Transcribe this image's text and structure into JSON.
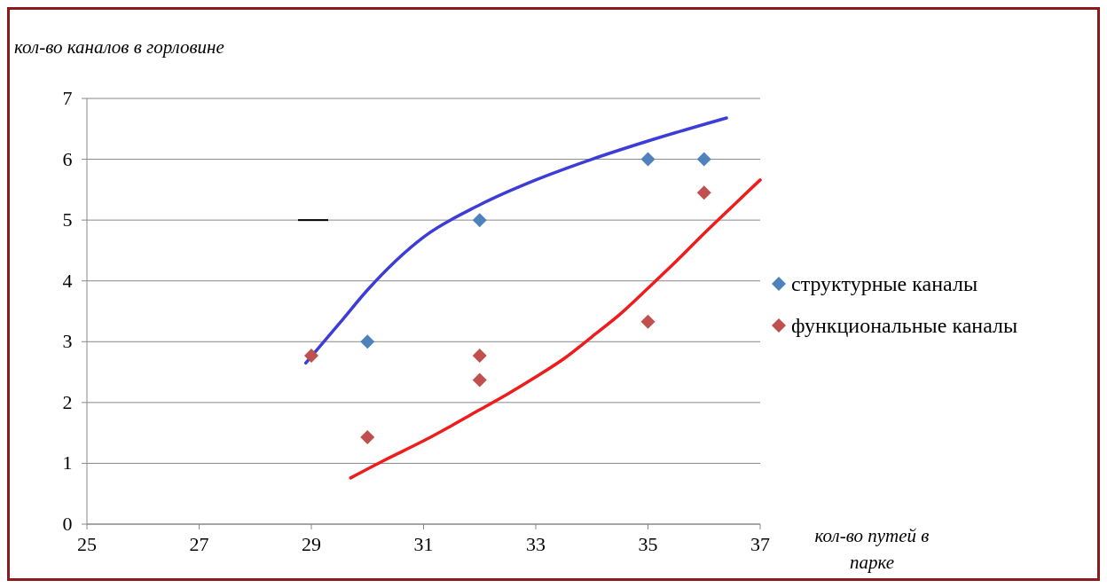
{
  "chart_data": {
    "type": "scatter",
    "xlabel": "кол-во путей в парке",
    "ylabel": "кол-во каналов в горловине",
    "xlim": [
      25,
      37
    ],
    "xticks": [
      25,
      27,
      29,
      31,
      33,
      35,
      37
    ],
    "ylim": [
      0,
      7
    ],
    "yticks": [
      0,
      1,
      2,
      3,
      4,
      5,
      6,
      7
    ],
    "grid": "y",
    "legend": "right",
    "marker": "diamond",
    "series": [
      {
        "name": "структурные каналы",
        "color": "#4f81bd",
        "x": [
          30,
          32,
          35,
          36
        ],
        "values": [
          3,
          5,
          6,
          6
        ]
      },
      {
        "name": "функциональные каналы",
        "color": "#c0504d",
        "x": [
          29,
          30,
          32,
          32,
          35,
          36
        ],
        "values": [
          2.77,
          1.43,
          2.77,
          2.37,
          3.33,
          5.45
        ]
      },
      {
        "type": "line",
        "marker": "none",
        "color": "#3c3cd8",
        "x": [
          28.9,
          29.5,
          30,
          31,
          32,
          33,
          34,
          35,
          36.4
        ],
        "values": [
          2.65,
          3.3,
          3.85,
          4.72,
          5.25,
          5.66,
          6,
          6.3,
          6.68
        ]
      },
      {
        "type": "line",
        "marker": "none",
        "color": "#ee1c1c",
        "x": [
          29.7,
          30.3,
          31,
          31.5,
          32,
          32.5,
          33,
          33.5,
          34,
          34.5,
          35,
          35.5,
          36,
          36.5,
          37
        ],
        "values": [
          0.76,
          1.05,
          1.37,
          1.62,
          1.88,
          2.14,
          2.42,
          2.72,
          3.08,
          3.45,
          3.88,
          4.32,
          4.78,
          5.22,
          5.66
        ]
      }
    ]
  }
}
